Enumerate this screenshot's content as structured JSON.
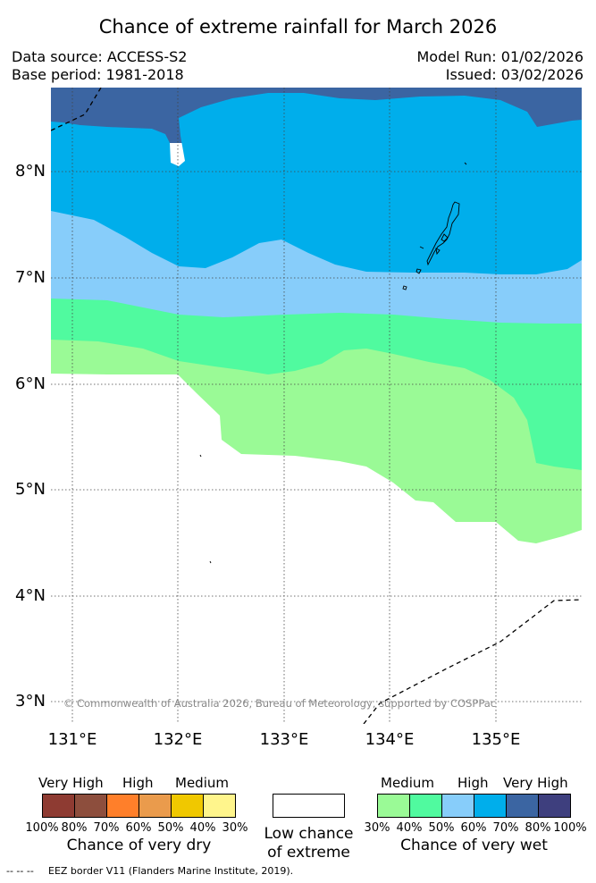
{
  "title": "Chance of extreme rainfall for March 2026",
  "meta": {
    "data_source": "Data source: ACCESS-S2",
    "base_period": "Base period: 1981-2018",
    "model_run": "Model Run: 01/02/2026",
    "issued": "Issued: 03/02/2026"
  },
  "map": {
    "lat_ticks": [
      "8°N",
      "7°N",
      "6°N",
      "5°N",
      "4°N",
      "3°N"
    ],
    "lon_ticks": [
      "131°E",
      "132°E",
      "133°E",
      "134°E",
      "135°E"
    ],
    "copyright": "© Commonwealth of Australia 2026, Bureau of Meteorology, supported by COSPPac"
  },
  "legend": {
    "dry": {
      "categories": [
        "Very High",
        "High",
        "Medium"
      ],
      "ticks": [
        "100%",
        "80%",
        "70%",
        "60%",
        "50%",
        "40%",
        "30%"
      ],
      "colors": [
        "#8e3b32",
        "#8d4e3d",
        "#ff7f2a",
        "#ea9b4c",
        "#f0c800",
        "#fff58c"
      ],
      "caption": "Chance of very dry"
    },
    "neutral": {
      "caption_line1": "Low chance",
      "caption_line2": "of extreme",
      "color": "#ffffff"
    },
    "wet": {
      "categories": [
        "Medium",
        "High",
        "Very High"
      ],
      "ticks": [
        "30%",
        "40%",
        "50%",
        "60%",
        "70%",
        "80%",
        "100%"
      ],
      "colors": [
        "#9afa96",
        "#50fa9f",
        "#87cdfa",
        "#00aeeb",
        "#3b65a2",
        "#3e3f7e"
      ],
      "caption": "Chance of very wet"
    }
  },
  "footer": {
    "eez_symbol": "-- -- --",
    "eez_note": "EEZ border V11 (Flanders Marine Institute, 2019)."
  }
}
